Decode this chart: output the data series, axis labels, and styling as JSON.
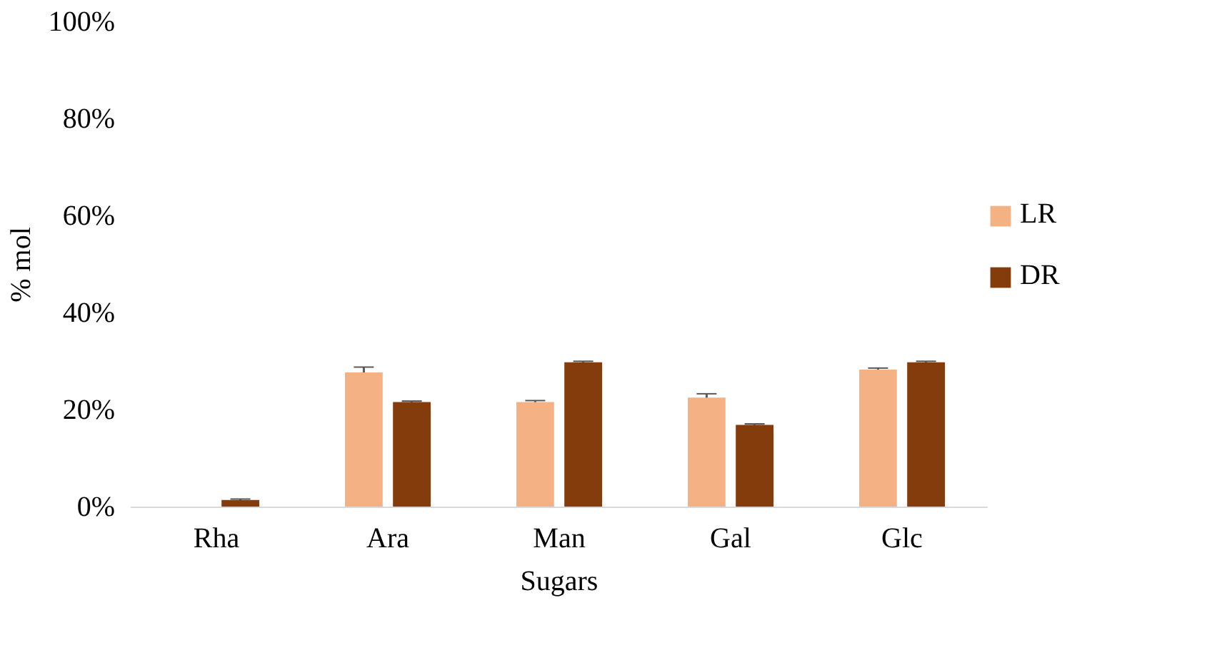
{
  "chart_data": {
    "type": "bar",
    "xlabel": "Sugars",
    "ylabel": "% mol",
    "categories": [
      "Rha",
      "Ara",
      "Man",
      "Gal",
      "Glc"
    ],
    "series": [
      {
        "name": "LR",
        "color": "#f4b183",
        "values": [
          null,
          27.8,
          21.7,
          22.6,
          28.4
        ],
        "errors": [
          null,
          1.1,
          0.3,
          0.8,
          0.3
        ]
      },
      {
        "name": "DR",
        "color": "#843c0c",
        "values": [
          1.5,
          21.7,
          29.9,
          17.0,
          29.9
        ],
        "errors": [
          0.2,
          0.2,
          0.2,
          0.2,
          0.2
        ]
      }
    ],
    "ylim": [
      0,
      100
    ],
    "yticks": [
      {
        "value": 0,
        "label": "0%"
      },
      {
        "value": 20,
        "label": "20%"
      },
      {
        "value": 40,
        "label": "40%"
      },
      {
        "value": 60,
        "label": "60%"
      },
      {
        "value": 80,
        "label": "80%"
      },
      {
        "value": 100,
        "label": "100%"
      }
    ],
    "grid": false,
    "legend": "right"
  }
}
